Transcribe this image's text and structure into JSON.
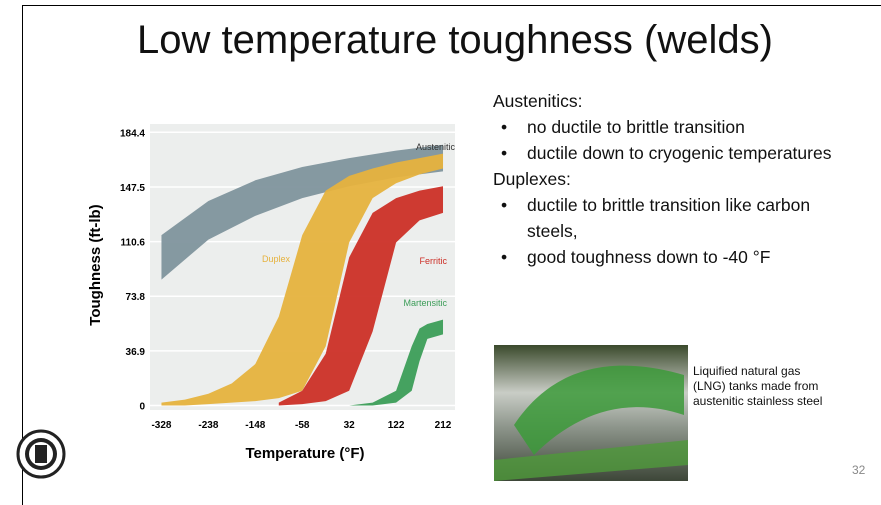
{
  "title": "Low temperature toughness (welds)",
  "chart_data": {
    "type": "band",
    "ylabel": "Toughness (ft-lb)",
    "xlabel": "Temperature (°F)",
    "xlim": [
      -350,
      235
    ],
    "xticks": [
      -328,
      -238,
      -148,
      -58,
      32,
      122,
      212
    ],
    "ylim": [
      -3,
      190
    ],
    "yticks": [
      0,
      36.9,
      73.8,
      110.6,
      147.5,
      184.4
    ],
    "grid": true,
    "series": [
      {
        "name": "Austenitic",
        "color": "#7f949d",
        "x": [
          -328,
          -238,
          -148,
          -58,
          32,
          122,
          212
        ],
        "lower": [
          85,
          112,
          128,
          140,
          148,
          154,
          158
        ],
        "upper": [
          115,
          138,
          152,
          161,
          167,
          172,
          176
        ]
      },
      {
        "name": "Duplex",
        "color": "#e6b23e",
        "x": [
          -328,
          -283,
          -238,
          -193,
          -148,
          -103,
          -58,
          -13,
          32,
          77,
          122,
          167,
          212
        ],
        "lower": [
          0,
          0,
          1,
          2,
          3,
          5,
          10,
          40,
          110,
          140,
          150,
          156,
          160
        ],
        "upper": [
          2,
          4,
          8,
          15,
          28,
          60,
          115,
          145,
          155,
          160,
          164,
          167,
          170
        ]
      },
      {
        "name": "Ferritic",
        "color": "#cc2f27",
        "x": [
          -103,
          -58,
          -13,
          32,
          77,
          122,
          167,
          212
        ],
        "lower": [
          0,
          1,
          3,
          10,
          50,
          110,
          125,
          130
        ],
        "upper": [
          2,
          10,
          35,
          100,
          130,
          140,
          145,
          148
        ]
      },
      {
        "name": "Martensitic",
        "color": "#3c9d58",
        "x": [
          32,
          77,
          122,
          152,
          167,
          182,
          212
        ],
        "lower": [
          0,
          0,
          2,
          10,
          30,
          45,
          48
        ],
        "upper": [
          0,
          2,
          10,
          40,
          52,
          55,
          58
        ]
      }
    ]
  },
  "right_text": {
    "heading1": "Austenitics:",
    "bullets1": [
      "no ductile to brittle transition",
      "ductile down to cryogenic temperatures"
    ],
    "heading2": "Duplexes:",
    "bullets2": [
      "ductile to brittle transition like carbon steels,",
      "good toughness down to -40 °F"
    ]
  },
  "caption": "Liquified natural gas (LNG) tanks made from austenitic stainless steel",
  "page_number": "32"
}
